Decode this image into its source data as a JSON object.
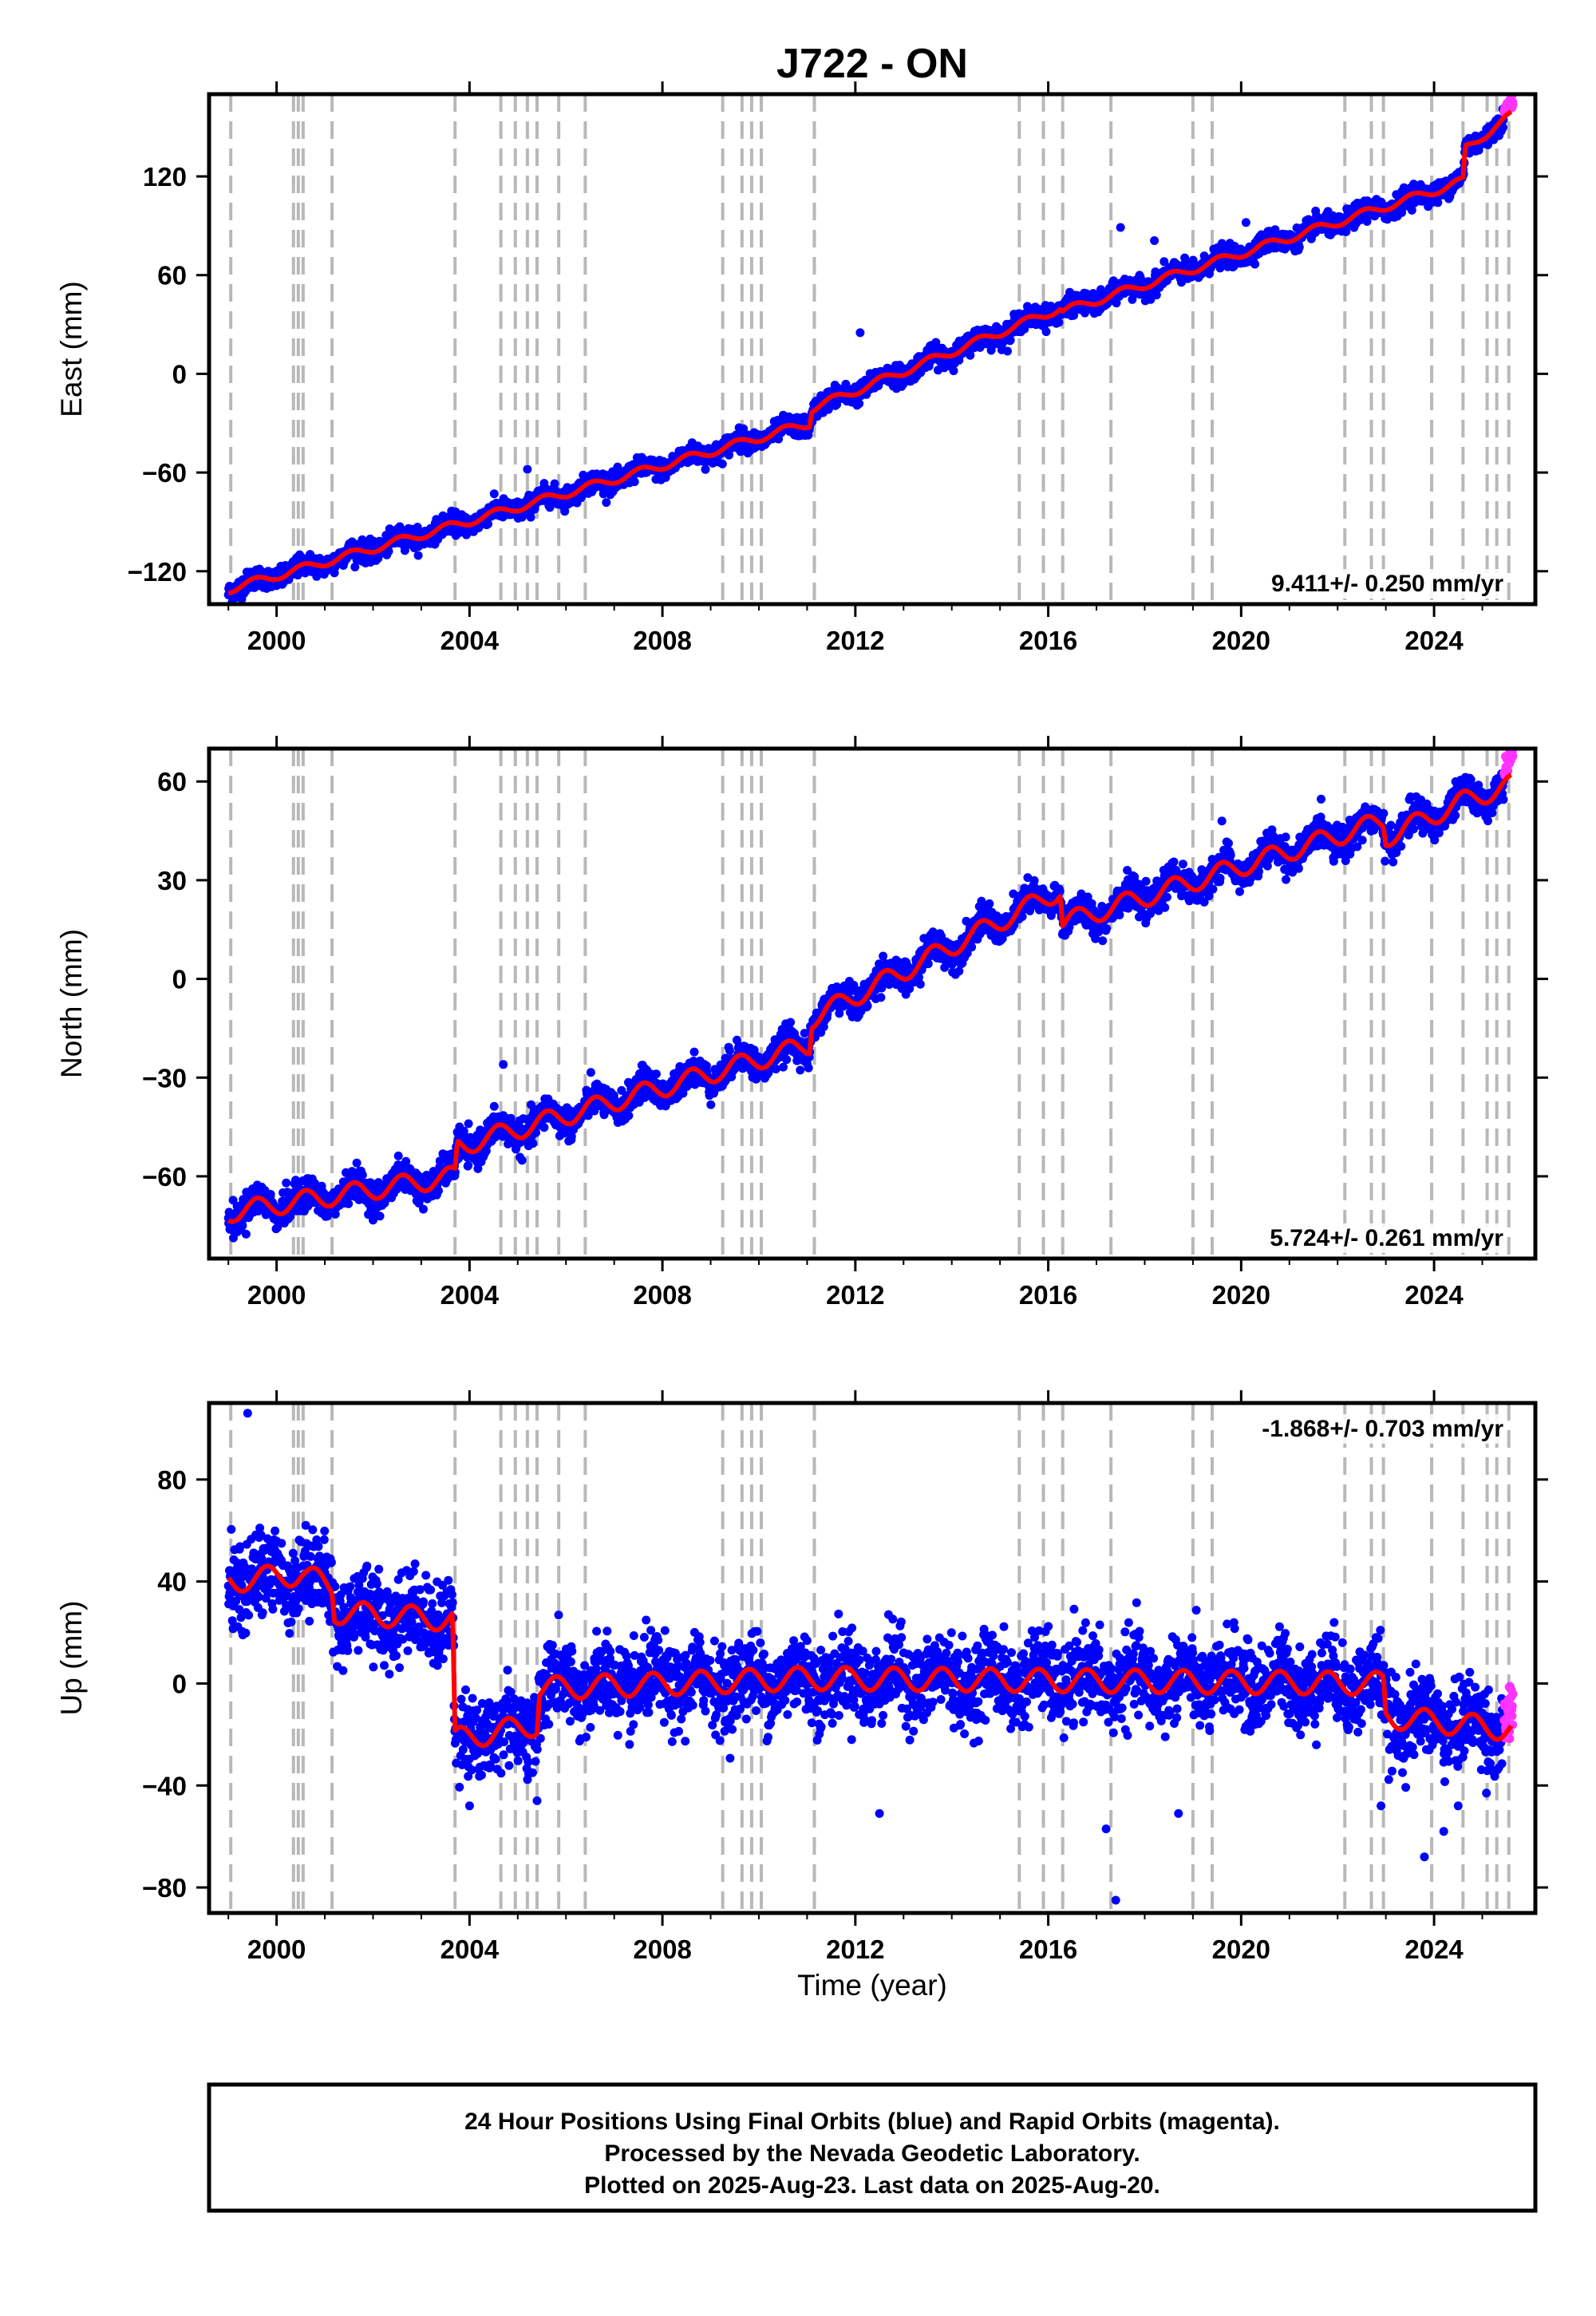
{
  "colors": {
    "final_orbits": "#0000ff",
    "rapid_orbits": "#ff33ff",
    "model": "#ff0000",
    "event_lines": "#b8b8b8",
    "frame": "#000000"
  },
  "chart_data": {
    "type": "scatter",
    "title": "J722 - ON",
    "xlabel": "Time (year)",
    "x_ticks": [
      "2000",
      "2004",
      "2008",
      "2012",
      "2016",
      "2020",
      "2024"
    ],
    "xlim": [
      1998.6,
      2026.1
    ],
    "event_lines": [
      1999.05,
      2000.35,
      2000.45,
      2000.55,
      2001.15,
      2003.7,
      2004.65,
      2004.95,
      2005.2,
      2005.4,
      2005.85,
      2006.4,
      2009.25,
      2009.65,
      2009.85,
      2010.05,
      2011.15,
      2015.4,
      2015.9,
      2016.3,
      2017.3,
      2019.0,
      2019.4,
      2022.15,
      2022.7,
      2022.95,
      2023.95,
      2024.6,
      2025.1,
      2025.3,
      2025.55
    ],
    "panels": [
      {
        "id": "east",
        "ylabel": "East (mm)",
        "ylim": [
          -140,
          170
        ],
        "y_ticks": [
          -120,
          -60,
          0,
          60,
          120
        ],
        "y_tick_labels": [
          "−120",
          "−60",
          "0",
          "60",
          "120"
        ],
        "rate_label": "9.411+/- 0.250 mm/yr",
        "rate_corner": "bottom-right",
        "model": {
          "anchors": [
            [
              1999.0,
              -131
            ],
            [
              2003.7,
              -92
            ],
            [
              2011.05,
              -30
            ],
            [
              2011.1,
              -21
            ],
            [
              2016.25,
              40
            ],
            [
              2016.3,
              38
            ],
            [
              2024.6,
              117
            ],
            [
              2024.65,
              137
            ],
            [
              2025.6,
              157
            ]
          ],
          "annual_amp": 2.5,
          "phase": 0.3
        },
        "scatter": {
          "sd": 3.0,
          "outliers": [
            [
              2001.2,
              -121
            ],
            [
              2005.2,
              -58
            ],
            [
              2012.1,
              25
            ],
            [
              2017.5,
              89
            ],
            [
              2018.2,
              81
            ],
            [
              2020.1,
              92
            ]
          ]
        }
      },
      {
        "id": "north",
        "ylabel": "North (mm)",
        "ylim": [
          -85,
          70
        ],
        "y_ticks": [
          -60,
          -30,
          0,
          30,
          60
        ],
        "y_tick_labels": [
          "−60",
          "−30",
          "0",
          "30",
          "60"
        ],
        "rate_label": "5.724+/- 0.261 mm/yr",
        "rate_corner": "bottom-right",
        "model": {
          "anchors": [
            [
              1999.0,
              -71
            ],
            [
              2003.7,
              -60
            ],
            [
              2003.75,
              -51
            ],
            [
              2011.05,
              -20
            ],
            [
              2011.1,
              -12
            ],
            [
              2016.25,
              27
            ],
            [
              2016.3,
              17
            ],
            [
              2022.95,
              48
            ],
            [
              2023.0,
              43
            ],
            [
              2024.6,
              54
            ],
            [
              2025.6,
              59
            ]
          ],
          "annual_amp": 3.0,
          "phase": 0.35
        },
        "scatter": {
          "sd": 2.3,
          "outliers": [
            [
              2004.7,
              -26
            ],
            [
              2005.9,
              -40
            ],
            [
              2019.6,
              48
            ],
            [
              2000.2,
              -62
            ]
          ]
        }
      },
      {
        "id": "up",
        "ylabel": "Up (mm)",
        "ylim": [
          -90,
          110
        ],
        "y_ticks": [
          -80,
          -40,
          0,
          40,
          80
        ],
        "y_tick_labels": [
          "−80",
          "−40",
          "0",
          "40",
          "80"
        ],
        "rate_label": "-1.868+/- 0.703 mm/yr",
        "rate_corner": "top-right",
        "model": {
          "anchors": [
            [
              1999.0,
              40
            ],
            [
              2000.5,
              43
            ],
            [
              2001.15,
              38
            ],
            [
              2001.2,
              28
            ],
            [
              2003.65,
              25
            ],
            [
              2003.7,
              -22
            ],
            [
              2005.4,
              -16
            ],
            [
              2005.45,
              -2
            ],
            [
              2011.0,
              2
            ],
            [
              2022.95,
              0
            ],
            [
              2023.0,
              -13
            ],
            [
              2025.6,
              -18
            ]
          ],
          "annual_amp": 4.5,
          "phase": 0.55
        },
        "scatter": {
          "sd": 8.0,
          "outliers": [
            [
              1999.4,
              106
            ],
            [
              2012.5,
              -51
            ],
            [
              2017.2,
              -57
            ],
            [
              2017.4,
              -85
            ],
            [
              2018.7,
              -51
            ],
            [
              2022.9,
              -48
            ],
            [
              2023.8,
              -68
            ],
            [
              2024.5,
              -48
            ],
            [
              2004.0,
              -48
            ],
            [
              2005.4,
              -46
            ],
            [
              2024.2,
              -58
            ]
          ]
        }
      }
    ]
  },
  "footer": {
    "line1": "24 Hour Positions Using Final Orbits (blue) and Rapid Orbits (magenta).",
    "line2": "Processed by the Nevada Geodetic Laboratory.",
    "line3": "Plotted on 2025-Aug-23. Last data on 2025-Aug-20."
  }
}
